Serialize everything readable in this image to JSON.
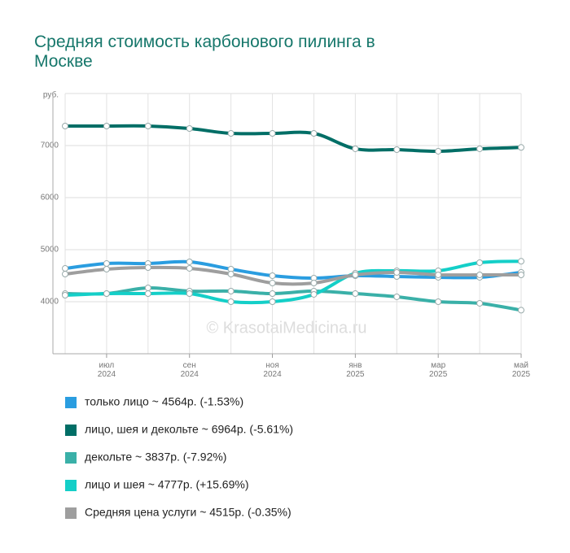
{
  "chart_data": {
    "type": "line",
    "title": "Средняя стоимость карбонового пилинга в Москве",
    "y_unit": "руб.",
    "watermark": "© KrasotaiMedicina.ru",
    "categories": [
      null,
      "июл 2024",
      null,
      "сен 2024",
      null,
      "ноя 2024",
      null,
      "янв 2025",
      null,
      "мар 2025",
      null,
      "май 2025"
    ],
    "ylim": [
      3000,
      8000
    ],
    "yticks": [
      4000,
      5000,
      6000,
      7000
    ],
    "grid": true,
    "series": [
      {
        "name": "только лицо ~ 4564р. (-1.53%)",
        "color": "#2a9de0",
        "values": [
          4640,
          4734,
          4734,
          4766,
          4625,
          4500,
          4453,
          4500,
          4484,
          4469,
          4469,
          4564
        ]
      },
      {
        "name": "лицо, шея и декольте ~ 6964р. (-5.61%)",
        "color": "#006e66",
        "values": [
          7375,
          7375,
          7375,
          7328,
          7234,
          7234,
          7234,
          6938,
          6922,
          6891,
          6938,
          6964
        ]
      },
      {
        "name": "декольте ~ 3837р. (-7.92%)",
        "color": "#3ab0a8",
        "values": [
          4156,
          4156,
          4266,
          4203,
          4203,
          4156,
          4203,
          4156,
          4094,
          4000,
          3969,
          3837
        ]
      },
      {
        "name": "лицо и шея ~ 4777р. (+15.69%)",
        "color": "#14cfc8",
        "values": [
          4125,
          4156,
          4156,
          4156,
          4000,
          4000,
          4141,
          4547,
          4594,
          4594,
          4750,
          4777
        ]
      },
      {
        "name": "Средняя цена услуги ~ 4515р. (-0.35%)",
        "color": "#9e9e9e",
        "values": [
          4531,
          4625,
          4656,
          4641,
          4531,
          4359,
          4359,
          4516,
          4563,
          4516,
          4516,
          4515
        ]
      }
    ]
  }
}
